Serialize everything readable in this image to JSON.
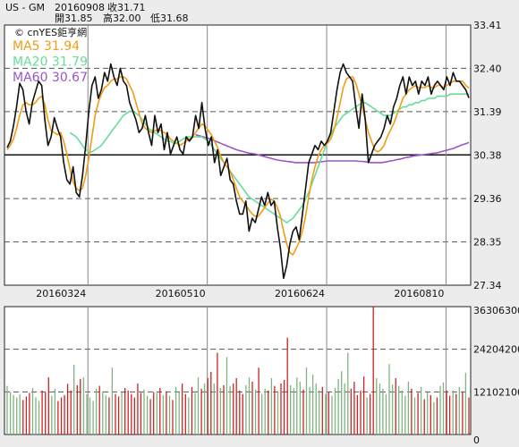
{
  "header": {
    "symbol": "US - GM",
    "date": "20160908",
    "close_label": "收31.71",
    "open_label": "開31.85",
    "high_label": "高32.00",
    "low_label": "低31.68"
  },
  "watermark": "© cnYES鉅亨網",
  "chart_data": [
    {
      "type": "line",
      "name": "price",
      "ylim": [
        27.34,
        33.41
      ],
      "yticks": [
        "33.41",
        "32.40",
        "31.39",
        "30.38",
        "29.36",
        "28.35",
        "27.34"
      ],
      "xticks": [
        "20160324",
        "20160510",
        "20160624",
        "20160810"
      ],
      "reference_line": 30.38,
      "legend": [
        {
          "label": "MA5 31.94",
          "color": "#f39c12"
        },
        {
          "label": "MA20 31.79",
          "color": "#66dd99"
        },
        {
          "label": "MA60 30.67",
          "color": "#9955cc"
        }
      ],
      "series": [
        {
          "name": "GM",
          "color": "#111111",
          "values": [
            30.55,
            30.7,
            31.05,
            31.5,
            32.05,
            31.9,
            31.4,
            31.1,
            31.6,
            31.85,
            32.1,
            32.0,
            31.2,
            30.6,
            30.8,
            31.25,
            31.0,
            30.8,
            30.2,
            29.8,
            29.7,
            30.1,
            29.5,
            29.4,
            29.9,
            30.6,
            31.4,
            32.0,
            32.2,
            31.7,
            31.9,
            32.3,
            32.1,
            32.5,
            32.2,
            32.0,
            32.4,
            32.1,
            32.0,
            31.6,
            31.4,
            31.2,
            30.9,
            31.0,
            31.3,
            30.9,
            30.6,
            31.3,
            30.9,
            31.1,
            30.5,
            30.9,
            30.4,
            30.6,
            30.8,
            30.5,
            30.4,
            30.8,
            30.7,
            30.8,
            31.3,
            31.0,
            31.6,
            31.0,
            30.6,
            30.8,
            30.2,
            30.5,
            29.9,
            30.1,
            30.3,
            29.8,
            29.7,
            29.3,
            29.0,
            29.0,
            29.3,
            28.6,
            28.9,
            28.8,
            29.1,
            29.4,
            29.2,
            29.5,
            29.2,
            29.3,
            28.7,
            28.2,
            27.5,
            27.8,
            28.3,
            28.6,
            28.7,
            28.4,
            29.0,
            29.6,
            30.2,
            30.4,
            30.6,
            30.5,
            30.7,
            30.6,
            30.7,
            30.9,
            31.4,
            31.9,
            32.3,
            32.5,
            32.3,
            32.2,
            32.1,
            31.5,
            31.0,
            31.8,
            31.2,
            30.2,
            30.4,
            30.6,
            30.7,
            30.8,
            31.0,
            31.3,
            31.1,
            31.5,
            31.7,
            32.0,
            32.2,
            31.8,
            32.2,
            32.0,
            32.1,
            31.8,
            32.1,
            32.0,
            32.2,
            31.8,
            32.0,
            32.1,
            32.0,
            31.9,
            32.2,
            32.0,
            32.3,
            32.1,
            32.1,
            32.0,
            31.9,
            31.71
          ]
        },
        {
          "name": "MA5",
          "color": "#f39c12",
          "values": [
            30.5,
            30.6,
            30.75,
            31.0,
            31.3,
            31.55,
            31.6,
            31.55,
            31.55,
            31.6,
            31.7,
            31.75,
            31.55,
            31.2,
            30.95,
            30.9,
            30.85,
            30.9,
            30.7,
            30.4,
            30.05,
            29.75,
            29.6,
            29.55,
            29.6,
            29.9,
            30.3,
            30.8,
            31.3,
            31.6,
            31.8,
            31.95,
            32.0,
            32.1,
            32.15,
            32.15,
            32.2,
            32.2,
            32.15,
            32.0,
            31.85,
            31.6,
            31.35,
            31.1,
            31.0,
            30.95,
            30.9,
            30.95,
            30.95,
            30.95,
            30.9,
            30.85,
            30.75,
            30.7,
            30.65,
            30.6,
            30.65,
            30.7,
            30.75,
            30.8,
            30.9,
            31.0,
            31.1,
            31.05,
            30.95,
            30.85,
            30.7,
            30.55,
            30.35,
            30.2,
            30.1,
            30.0,
            29.8,
            29.6,
            29.4,
            29.3,
            29.2,
            29.1,
            29.0,
            28.95,
            28.95,
            29.05,
            29.15,
            29.25,
            29.35,
            29.3,
            29.15,
            28.95,
            28.6,
            28.3,
            28.1,
            28.05,
            28.2,
            28.35,
            28.6,
            28.95,
            29.4,
            29.8,
            30.1,
            30.35,
            30.5,
            30.6,
            30.65,
            30.75,
            30.95,
            31.25,
            31.6,
            31.95,
            32.15,
            32.2,
            32.2,
            32.05,
            31.8,
            31.5,
            31.2,
            30.9,
            30.7,
            30.5,
            30.45,
            30.5,
            30.6,
            30.8,
            30.95,
            31.1,
            31.3,
            31.5,
            31.7,
            31.8,
            31.9,
            31.95,
            32.0,
            31.95,
            31.95,
            31.95,
            32.0,
            31.95,
            31.95,
            32.0,
            32.0,
            31.95,
            32.0,
            32.05,
            32.1,
            32.1,
            32.1,
            32.1,
            32.0,
            31.94
          ]
        },
        {
          "name": "MA20",
          "color": "#66dd99",
          "values": [
            null,
            null,
            null,
            null,
            null,
            null,
            null,
            null,
            null,
            null,
            null,
            null,
            null,
            null,
            null,
            null,
            null,
            null,
            null,
            null,
            30.9,
            30.85,
            30.8,
            30.7,
            30.6,
            30.5,
            30.45,
            30.45,
            30.5,
            30.55,
            30.6,
            30.7,
            30.8,
            30.9,
            31.0,
            31.1,
            31.2,
            31.3,
            31.35,
            31.4,
            31.4,
            31.35,
            31.3,
            31.2,
            31.1,
            31.0,
            30.95,
            30.9,
            30.85,
            30.8,
            30.75,
            30.7,
            30.7,
            30.65,
            30.65,
            30.7,
            30.75,
            30.8,
            30.8,
            30.8,
            30.8,
            30.8,
            30.8,
            30.75,
            30.7,
            30.6,
            30.5,
            30.4,
            30.3,
            30.2,
            30.1,
            30.0,
            29.9,
            29.8,
            29.7,
            29.6,
            29.5,
            29.4,
            29.35,
            29.3,
            29.25,
            29.2,
            29.15,
            29.1,
            29.05,
            29.0,
            28.95,
            28.9,
            28.85,
            28.8,
            28.85,
            28.9,
            29.0,
            29.1,
            29.2,
            29.35,
            29.5,
            29.7,
            29.9,
            30.1,
            30.3,
            30.5,
            30.7,
            30.85,
            31.0,
            31.1,
            31.2,
            31.3,
            31.35,
            31.4,
            31.45,
            31.5,
            31.55,
            31.6,
            31.6,
            31.55,
            31.5,
            31.45,
            31.4,
            31.35,
            31.3,
            31.3,
            31.3,
            31.35,
            31.4,
            31.45,
            31.5,
            31.5,
            31.55,
            31.55,
            31.6,
            31.6,
            31.65,
            31.65,
            31.7,
            31.7,
            31.7,
            31.75,
            31.75,
            31.75,
            31.75,
            31.8,
            31.8,
            31.8,
            31.8,
            31.8,
            31.8,
            31.79
          ]
        },
        {
          "name": "MA60",
          "color": "#9955cc",
          "values": [
            null,
            null,
            null,
            null,
            null,
            null,
            null,
            null,
            null,
            null,
            null,
            null,
            null,
            null,
            null,
            null,
            null,
            null,
            null,
            null,
            null,
            null,
            null,
            null,
            null,
            null,
            null,
            null,
            null,
            null,
            null,
            null,
            null,
            null,
            null,
            null,
            null,
            null,
            null,
            null,
            null,
            null,
            null,
            null,
            null,
            null,
            null,
            null,
            null,
            null,
            null,
            null,
            null,
            null,
            null,
            null,
            null,
            null,
            null,
            null,
            30.85,
            30.83,
            30.81,
            30.79,
            30.77,
            30.74,
            30.71,
            30.68,
            30.65,
            30.62,
            30.59,
            30.56,
            30.53,
            30.5,
            30.48,
            30.46,
            30.44,
            30.42,
            30.41,
            30.4,
            30.38,
            30.36,
            30.34,
            30.32,
            30.3,
            30.28,
            30.26,
            30.25,
            30.24,
            30.23,
            30.22,
            30.21,
            30.2,
            30.2,
            30.2,
            30.2,
            30.2,
            30.2,
            30.2,
            30.21,
            30.22,
            30.23,
            30.24,
            30.24,
            30.24,
            30.24,
            30.24,
            30.24,
            30.24,
            30.24,
            30.24,
            30.24,
            30.23,
            30.23,
            30.22,
            30.21,
            30.2,
            30.2,
            30.2,
            30.2,
            30.21,
            30.22,
            30.24,
            30.25,
            30.27,
            30.28,
            30.3,
            30.32,
            30.33,
            30.35,
            30.36,
            30.37,
            30.38,
            30.39,
            30.4,
            30.41,
            30.42,
            30.43,
            30.45,
            30.47,
            30.49,
            30.51,
            30.53,
            30.56,
            30.59,
            30.62,
            30.64,
            30.67
          ]
        }
      ]
    },
    {
      "type": "bar",
      "name": "volume",
      "ylim": [
        0,
        36306300
      ],
      "yticks": [
        "36306300",
        "24204200",
        "12102100",
        "0"
      ],
      "colors": {
        "up": "#7fb37f",
        "down": "#cc2222"
      },
      "values": [
        13800000.0,
        12000000.0,
        11200000.0,
        10500000.0,
        11400000.0,
        9800000.0,
        10800000.0,
        11800000.0,
        13200000.0,
        10500000.0,
        9500000.0,
        12500000.0,
        12000000.0,
        16200000.0,
        11000000.0,
        13000000.0,
        9500000.0,
        10500000.0,
        11200000.0,
        14400000.0,
        12500000.0,
        19800000.0,
        14000000.0,
        15800000.0,
        16200000.0,
        11500000.0,
        10500000.0,
        9500000.0,
        13000000.0,
        13800000.0,
        12200000.0,
        11200000.0,
        10500000.0,
        19000000.0,
        11500000.0,
        10800000.0,
        12000000.0,
        13200000.0,
        12500000.0,
        11500000.0,
        10500000.0,
        14500000.0,
        11800000.0,
        12800000.0,
        11000000.0,
        10000000.0,
        12000000.0,
        11800000.0,
        13200000.0,
        11200000.0,
        12200000.0,
        11000000.0,
        9800000.0,
        13500000.0,
        12000000.0,
        14500000.0,
        11500000.0,
        10500000.0,
        13500000.0,
        11800000.0,
        16200000.0,
        13000000.0,
        14500000.0,
        16000000.0,
        17800000.0,
        14500000.0,
        23200000.0,
        13200000.0,
        14000000.0,
        22000000.0,
        13800000.0,
        14500000.0,
        16000000.0,
        12500000.0,
        11500000.0,
        14000000.0,
        16200000.0,
        15000000.0,
        12800000.0,
        19000000.0,
        11500000.0,
        13000000.0,
        12500000.0,
        16000000.0,
        13800000.0,
        12000000.0,
        14500000.0,
        15500000.0,
        27500000.0,
        14000000.0,
        13200000.0,
        16200000.0,
        15000000.0,
        12800000.0,
        19000000.0,
        13500000.0,
        17000000.0,
        14500000.0,
        12500000.0,
        13500000.0,
        11500000.0,
        12000000.0,
        11000000.0,
        13200000.0,
        15800000.0,
        18000000.0,
        14500000.0,
        23200000.0,
        13000000.0,
        15000000.0,
        11200000.0,
        12500000.0,
        16500000.0,
        10500000.0,
        11500000.0,
        36300000.0,
        16000000.0,
        14500000.0,
        13000000.0,
        11500000.0,
        20000000.0,
        14200000.0,
        16000000.0,
        13800000.0,
        12500000.0,
        11000000.0,
        15000000.0,
        13000000.0,
        10500000.0,
        11800000.0,
        13500000.0,
        10000000.0,
        12000000.0,
        11200000.0,
        9200000.0,
        10500000.0,
        13800000.0,
        14800000.0,
        12500000.0,
        11000000.0,
        12500000.0,
        11500000.0,
        13500000.0,
        12000000.0,
        17500000.0,
        10500000.0
      ],
      "directions": [
        1,
        1,
        1,
        1,
        1,
        0,
        0,
        0,
        1,
        1,
        1,
        0,
        0,
        0,
        1,
        1,
        0,
        0,
        0,
        0,
        0,
        1,
        0,
        0,
        1,
        1,
        1,
        1,
        1,
        0,
        1,
        1,
        0,
        1,
        0,
        0,
        1,
        0,
        0,
        0,
        0,
        0,
        0,
        1,
        1,
        0,
        0,
        1,
        0,
        1,
        0,
        1,
        0,
        1,
        1,
        0,
        0,
        1,
        0,
        1,
        1,
        0,
        1,
        0,
        0,
        1,
        0,
        1,
        0,
        1,
        1,
        0,
        0,
        0,
        0,
        1,
        1,
        0,
        1,
        0,
        1,
        1,
        0,
        1,
        0,
        1,
        0,
        0,
        0,
        1,
        1,
        1,
        1,
        0,
        1,
        1,
        1,
        1,
        1,
        0,
        1,
        0,
        1,
        1,
        1,
        1,
        1,
        1,
        0,
        0,
        0,
        0,
        0,
        1,
        0,
        0,
        1,
        1,
        1,
        1,
        1,
        1,
        0,
        1,
        1,
        1,
        1,
        0,
        1,
        0,
        1,
        0,
        1,
        0,
        1,
        0,
        1,
        1,
        0,
        0,
        1,
        0,
        1,
        0,
        1,
        0,
        0,
        0,
        0,
        0
      ]
    }
  ]
}
